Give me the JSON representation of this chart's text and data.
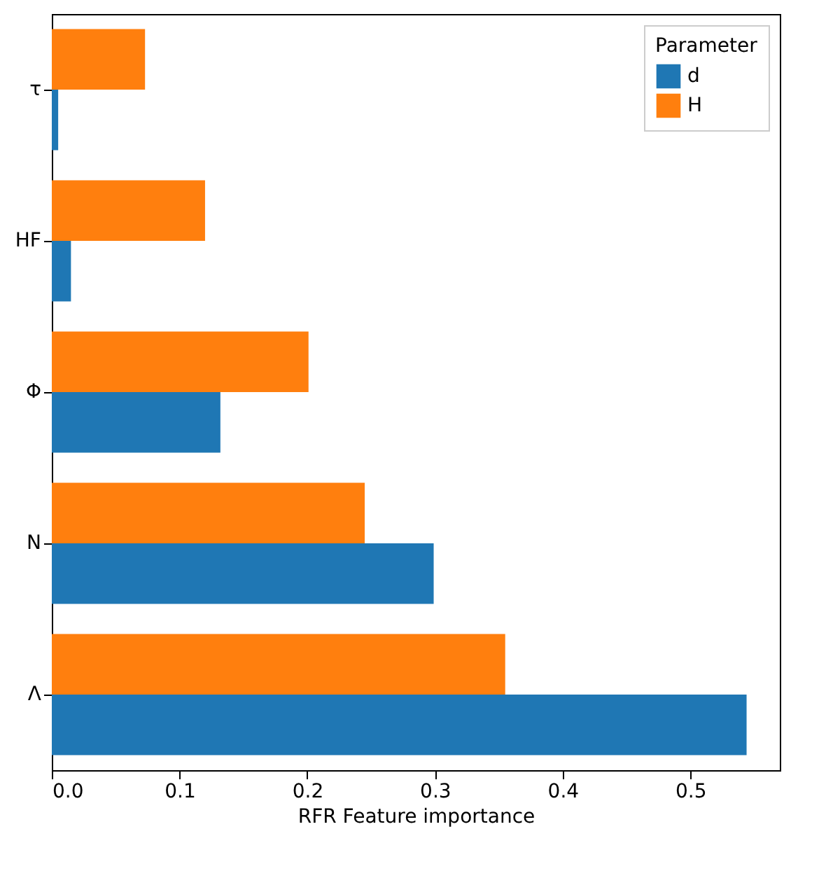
{
  "chart_data": {
    "type": "bar",
    "orientation": "horizontal",
    "xlabel": "RFR Feature importance",
    "legend_title": "Parameter",
    "legend": "top right",
    "grid": false,
    "categories": [
      "τ",
      "HF",
      "Φ",
      "N",
      "Λ"
    ],
    "series": [
      {
        "name": "d",
        "color": "#1f77b4",
        "values": [
          0.005,
          0.015,
          0.132,
          0.299,
          0.544
        ]
      },
      {
        "name": "H",
        "color": "#ff7f0e",
        "values": [
          0.073,
          0.12,
          0.201,
          0.245,
          0.355
        ]
      }
    ],
    "xlim": [
      0,
      0.57
    ],
    "xticks": [
      {
        "value": 0,
        "label": "0.0"
      },
      0.1,
      0.2,
      0.3,
      0.4,
      0.5
    ]
  }
}
